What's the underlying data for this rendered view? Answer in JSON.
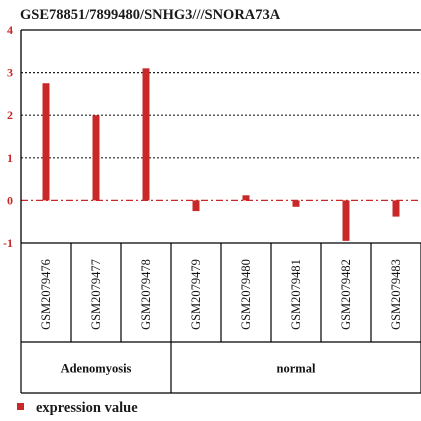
{
  "chart_data": {
    "type": "bar",
    "title": "GSE78851/7899480/SNHG3///SNORA73A",
    "categories": [
      "GSM2079476",
      "GSM2079477",
      "GSM2079478",
      "GSM2079479",
      "GSM2079480",
      "GSM2079481",
      "GSM2079482",
      "GSM2079483"
    ],
    "series": [
      {
        "name": "expression value",
        "values": [
          2.75,
          2.0,
          3.1,
          -0.25,
          0.12,
          -0.15,
          -0.95,
          -0.38
        ],
        "color": "#c82828"
      }
    ],
    "ylim": [
      -1,
      4
    ],
    "yticks": [
      -1,
      0,
      1,
      2,
      3,
      4
    ],
    "gridlines": [
      1,
      2,
      3
    ],
    "baseline": 0,
    "groups": [
      {
        "label": "Adenomyosis",
        "count": 3
      },
      {
        "label": "normal",
        "count": 5
      }
    ],
    "legend_position": "bottom-left"
  }
}
